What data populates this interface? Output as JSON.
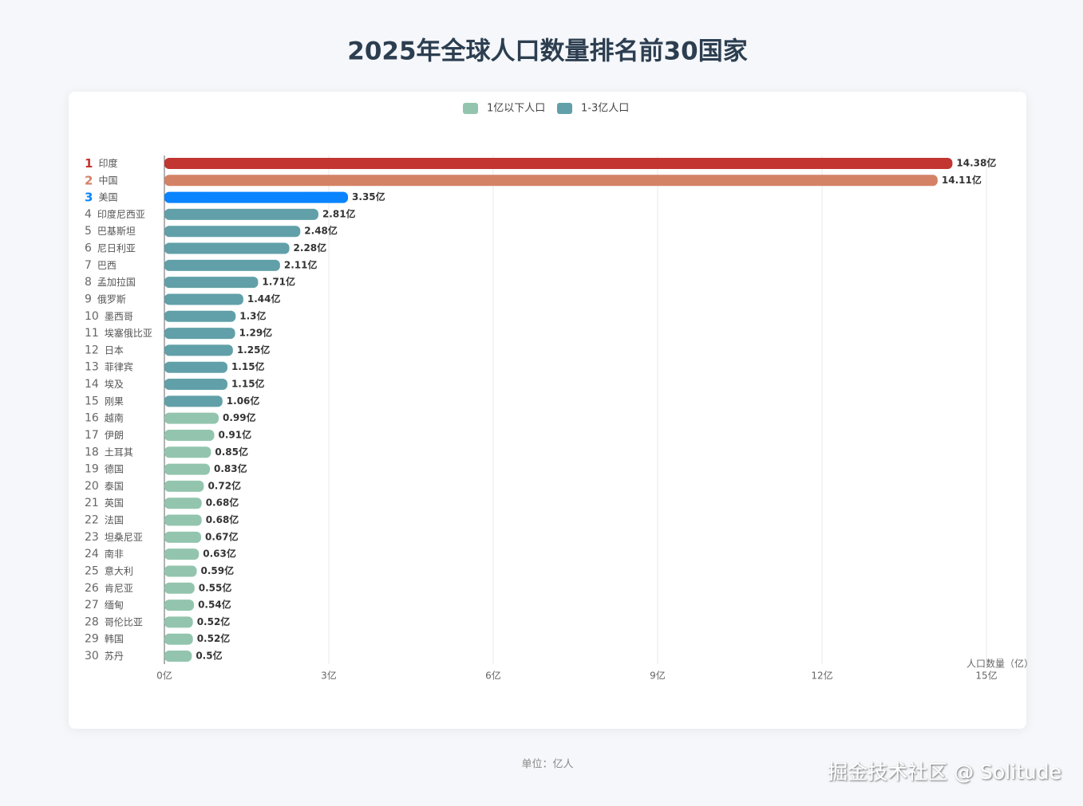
{
  "chart_data": {
    "type": "hbar",
    "title": "2025年全球人口数量排名前30国家",
    "ranks": [
      1,
      2,
      3,
      4,
      5,
      6,
      7,
      8,
      9,
      10,
      11,
      12,
      13,
      14,
      15,
      16,
      17,
      18,
      19,
      20,
      21,
      22,
      23,
      24,
      25,
      26,
      27,
      28,
      29,
      30
    ],
    "categories": [
      "印度",
      "中国",
      "美国",
      "印度尼西亚",
      "巴基斯坦",
      "尼日利亚",
      "巴西",
      "孟加拉国",
      "俄罗斯",
      "墨西哥",
      "埃塞俄比亚",
      "日本",
      "菲律宾",
      "埃及",
      "刚果",
      "越南",
      "伊朗",
      "土耳其",
      "德国",
      "泰国",
      "英国",
      "法国",
      "坦桑尼亚",
      "南非",
      "意大利",
      "肯尼亚",
      "缅甸",
      "哥伦比亚",
      "韩国",
      "苏丹"
    ],
    "values": [
      14.38,
      14.11,
      3.35,
      2.81,
      2.48,
      2.28,
      2.11,
      1.71,
      1.44,
      1.3,
      1.29,
      1.25,
      1.15,
      1.15,
      1.06,
      0.99,
      0.91,
      0.85,
      0.83,
      0.72,
      0.68,
      0.68,
      0.67,
      0.63,
      0.59,
      0.55,
      0.54,
      0.52,
      0.52,
      0.5
    ],
    "value_labels": [
      "14.38亿",
      "14.11亿",
      "3.35亿",
      "2.81亿",
      "2.48亿",
      "2.28亿",
      "2.11亿",
      "1.71亿",
      "1.44亿",
      "1.3亿",
      "1.29亿",
      "1.25亿",
      "1.15亿",
      "1.15亿",
      "1.06亿",
      "0.99亿",
      "0.91亿",
      "0.85亿",
      "0.83亿",
      "0.72亿",
      "0.68亿",
      "0.68亿",
      "0.67亿",
      "0.63亿",
      "0.59亿",
      "0.55亿",
      "0.54亿",
      "0.52亿",
      "0.52亿",
      "0.5亿"
    ],
    "bar_colors": [
      "#c23531",
      "#d48265",
      "#0a84ff",
      "#61a0a8",
      "#61a0a8",
      "#61a0a8",
      "#61a0a8",
      "#61a0a8",
      "#61a0a8",
      "#61a0a8",
      "#61a0a8",
      "#61a0a8",
      "#61a0a8",
      "#61a0a8",
      "#61a0a8",
      "#93c5ae",
      "#93c5ae",
      "#93c5ae",
      "#93c5ae",
      "#93c5ae",
      "#93c5ae",
      "#93c5ae",
      "#93c5ae",
      "#93c5ae",
      "#93c5ae",
      "#93c5ae",
      "#93c5ae",
      "#93c5ae",
      "#93c5ae",
      "#93c5ae"
    ],
    "highlight_top": 3,
    "legend": [
      {
        "name": "1亿以下人口",
        "color": "#93c5ae"
      },
      {
        "name": "1-3亿人口",
        "color": "#61a0a8"
      }
    ],
    "xlim": [
      0,
      15
    ],
    "xticks": [
      {
        "value": 0,
        "label": "0亿"
      },
      {
        "value": 3,
        "label": "3亿"
      },
      {
        "value": 6,
        "label": "6亿"
      },
      {
        "value": 9,
        "label": "9亿"
      },
      {
        "value": 12,
        "label": "12亿"
      },
      {
        "value": 15,
        "label": "15亿"
      }
    ],
    "x_label": "人口数量（亿）",
    "grid": true,
    "footer": "单位：亿人",
    "watermark": "掘金技术社区 @ Solitude"
  }
}
